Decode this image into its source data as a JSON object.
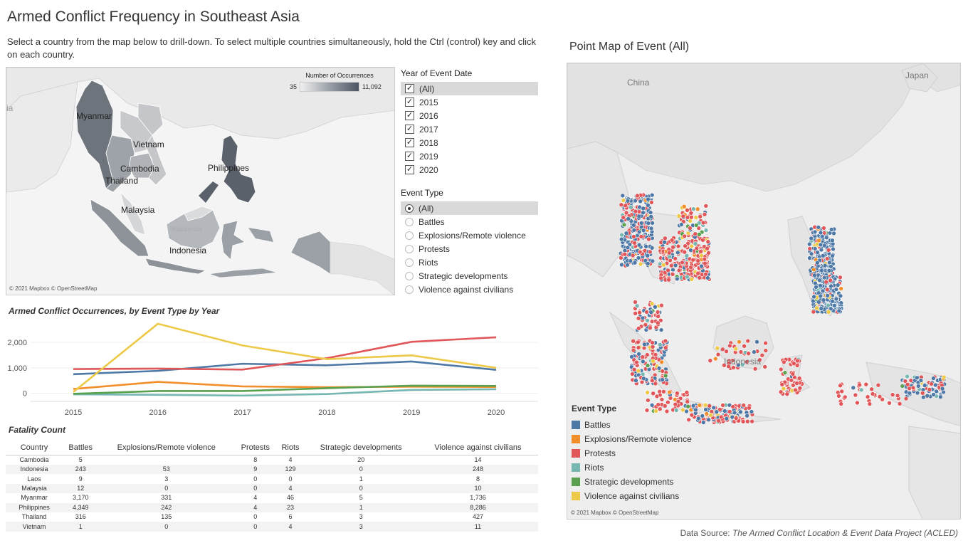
{
  "header": {
    "title": "Armed Conflict Frequency in Southeast Asia",
    "subtitle": "Select a country from the map below to drill-down. To select multiple countries simultaneously, hold the Ctrl (control) key and click on each country."
  },
  "left_map": {
    "legend_title": "Number of Occurrences",
    "legend_min": "35",
    "legend_max": "11,092",
    "labels": [
      "Myanmar",
      "Vietnam",
      "Cambodia",
      "Thailand",
      "Philippines",
      "Malaysia",
      "Indonesia"
    ],
    "edge_label": "ia",
    "faded_label": "Indonesia",
    "credit": "© 2021 Mapbox © OpenStreetMap"
  },
  "filters": {
    "year_title": "Year of Event Date",
    "years": [
      "(All)",
      "2015",
      "2016",
      "2017",
      "2018",
      "2019",
      "2020"
    ],
    "event_title": "Event Type",
    "events": [
      "(All)",
      "Battles",
      "Explosions/Remote violence",
      "Protests",
      "Riots",
      "Strategic developments",
      "Violence against civilians"
    ]
  },
  "line_chart_title": "Armed Conflict Occurrences, by Event Type by Year",
  "chart_data": {
    "type": "line",
    "x": [
      2015,
      2016,
      2017,
      2018,
      2019,
      2020
    ],
    "ylim": [
      -150,
      2700
    ],
    "yticks": [
      "0",
      "1,000",
      "2,000"
    ],
    "ytick_values": [
      0,
      1000,
      2000
    ],
    "series": [
      {
        "name": "Battles",
        "color": "#4e79a7",
        "values": [
          750,
          880,
          1160,
          1100,
          1250,
          920
        ]
      },
      {
        "name": "Explosions/Remote violence",
        "color": "#f28e2b",
        "values": [
          170,
          450,
          270,
          240,
          260,
          250
        ]
      },
      {
        "name": "Protests",
        "color": "#e15759",
        "values": [
          950,
          970,
          930,
          1380,
          2020,
          2200
        ]
      },
      {
        "name": "Riots",
        "color": "#76b7b2",
        "values": [
          -40,
          -60,
          -90,
          -30,
          130,
          160
        ]
      },
      {
        "name": "Strategic developments",
        "color": "#59a14f",
        "values": [
          -20,
          90,
          90,
          200,
          300,
          290
        ]
      },
      {
        "name": "Violence against civilians",
        "color": "#edc948",
        "values": [
          50,
          2730,
          1880,
          1340,
          1490,
          1000
        ]
      }
    ]
  },
  "fatality": {
    "title": "Fatality Count",
    "columns": [
      "Country",
      "Battles",
      "Explosions/Remote violence",
      "Protests",
      "Riots",
      "Strategic developments",
      "Violence against civilians"
    ],
    "rows": [
      [
        "Cambodia",
        "5",
        "",
        "8",
        "4",
        "20",
        "14"
      ],
      [
        "Indonesia",
        "243",
        "53",
        "9",
        "129",
        "0",
        "248"
      ],
      [
        "Laos",
        "9",
        "3",
        "0",
        "0",
        "1",
        "8"
      ],
      [
        "Malaysia",
        "12",
        "0",
        "0",
        "4",
        "0",
        "10"
      ],
      [
        "Myanmar",
        "3,170",
        "331",
        "4",
        "46",
        "5",
        "1,736"
      ],
      [
        "Philippines",
        "4,349",
        "242",
        "4",
        "23",
        "1",
        "8,286"
      ],
      [
        "Thailand",
        "316",
        "135",
        "0",
        "6",
        "3",
        "427"
      ],
      [
        "Vietnam",
        "1",
        "0",
        "0",
        "4",
        "3",
        "11"
      ]
    ]
  },
  "right_map": {
    "title": "Point Map of Event (All)",
    "labels": [
      "China",
      "Japan",
      "Indonesia"
    ],
    "credit": "© 2021 Mapbox © OpenStreetMap",
    "legend_title": "Event Type",
    "legend": [
      {
        "label": "Battles",
        "color": "#4e79a7"
      },
      {
        "label": "Explosions/Remote violence",
        "color": "#f28e2b"
      },
      {
        "label": "Protests",
        "color": "#e15759"
      },
      {
        "label": "Riots",
        "color": "#76b7b2"
      },
      {
        "label": "Strategic developments",
        "color": "#59a14f"
      },
      {
        "label": "Violence against civilians",
        "color": "#edc948"
      }
    ]
  },
  "footer": {
    "prefix": "Data Source: ",
    "source": "The Armed Conflict Location & Event Data Project (ACLED)"
  }
}
